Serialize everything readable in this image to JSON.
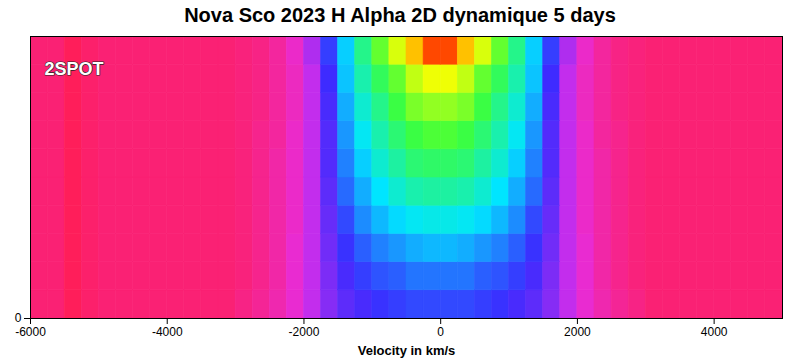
{
  "chart_data": {
    "type": "heatmap",
    "title": "Nova Sco 2023 H Alpha 2D dynamique 5 days",
    "logo": "2SPOT",
    "x_label": "Velocity in km/s",
    "xlim": [
      -6000,
      5000
    ],
    "xticks": [
      -6000,
      -4000,
      -2000,
      0,
      2000,
      4000
    ],
    "ylim": [
      0,
      5
    ],
    "yticks": [
      0
    ],
    "x_bins": [
      -6000,
      -5750,
      -5500,
      -5250,
      -5000,
      -4750,
      -4500,
      -4250,
      -4000,
      -3750,
      -3500,
      -3250,
      -3000,
      -2750,
      -2500,
      -2250,
      -2000,
      -1750,
      -1500,
      -1250,
      -1000,
      -750,
      -500,
      -250,
      0,
      250,
      500,
      750,
      1000,
      1250,
      1500,
      1750,
      2000,
      2250,
      2500,
      2750,
      3000,
      3250,
      3500,
      3750,
      4000,
      4250,
      4500,
      4750,
      5000
    ],
    "y_bins": [
      0,
      0.5,
      1,
      1.5,
      2,
      2.5,
      3,
      3.5,
      4,
      4.5,
      5
    ],
    "color_range": [
      0,
      1
    ],
    "colors": [
      "#ff1e5a",
      "#e52ee8",
      "#3b2bff",
      "#00e5ff",
      "#3cff3c",
      "#ffff00",
      "#ff2000"
    ],
    "cells": [
      [
        0.03,
        0.03,
        0,
        0.02,
        0.03,
        0.03,
        0.03,
        0.03,
        0.03,
        0.03,
        0.03,
        0.03,
        0.05,
        0.07,
        0.1,
        0.14,
        0.2,
        0.26,
        0.3,
        0.32,
        0.34,
        0.35,
        0.36,
        0.36,
        0.36,
        0.36,
        0.35,
        0.34,
        0.32,
        0.3,
        0.26,
        0.2,
        0.14,
        0.1,
        0.07,
        0.05,
        0.03,
        0.03,
        0.03,
        0.03,
        0.03,
        0.03,
        0.03,
        0.03
      ],
      [
        0.03,
        0.03,
        0,
        0.02,
        0.03,
        0.03,
        0.03,
        0.03,
        0.03,
        0.03,
        0.03,
        0.03,
        0.04,
        0.06,
        0.09,
        0.14,
        0.2,
        0.27,
        0.32,
        0.35,
        0.37,
        0.38,
        0.4,
        0.4,
        0.4,
        0.4,
        0.38,
        0.37,
        0.35,
        0.32,
        0.27,
        0.2,
        0.14,
        0.09,
        0.06,
        0.04,
        0.03,
        0.03,
        0.03,
        0.03,
        0.03,
        0.03,
        0.03,
        0.03
      ],
      [
        0.03,
        0.03,
        0,
        0.02,
        0.03,
        0.03,
        0.03,
        0.03,
        0.03,
        0.03,
        0.03,
        0.03,
        0.04,
        0.06,
        0.09,
        0.14,
        0.2,
        0.28,
        0.34,
        0.38,
        0.41,
        0.43,
        0.45,
        0.46,
        0.46,
        0.45,
        0.43,
        0.41,
        0.38,
        0.34,
        0.28,
        0.2,
        0.14,
        0.09,
        0.06,
        0.04,
        0.03,
        0.03,
        0.03,
        0.03,
        0.03,
        0.03,
        0.03,
        0.03
      ],
      [
        0.03,
        0.03,
        0,
        0.02,
        0.03,
        0.03,
        0.03,
        0.03,
        0.03,
        0.03,
        0.03,
        0.03,
        0.04,
        0.06,
        0.09,
        0.13,
        0.2,
        0.29,
        0.36,
        0.42,
        0.46,
        0.49,
        0.51,
        0.52,
        0.52,
        0.51,
        0.49,
        0.46,
        0.42,
        0.36,
        0.29,
        0.2,
        0.13,
        0.09,
        0.06,
        0.04,
        0.03,
        0.03,
        0.03,
        0.03,
        0.03,
        0.03,
        0.03,
        0.03
      ],
      [
        0.03,
        0.03,
        0,
        0.02,
        0.03,
        0.03,
        0.03,
        0.03,
        0.03,
        0.03,
        0.03,
        0.03,
        0.04,
        0.06,
        0.09,
        0.13,
        0.2,
        0.3,
        0.39,
        0.45,
        0.5,
        0.54,
        0.57,
        0.58,
        0.58,
        0.57,
        0.54,
        0.5,
        0.45,
        0.39,
        0.3,
        0.2,
        0.13,
        0.09,
        0.06,
        0.04,
        0.03,
        0.03,
        0.03,
        0.03,
        0.03,
        0.03,
        0.03,
        0.03
      ],
      [
        0.03,
        0.03,
        0,
        0.02,
        0.03,
        0.03,
        0.03,
        0.03,
        0.03,
        0.03,
        0.03,
        0.03,
        0.04,
        0.06,
        0.09,
        0.13,
        0.2,
        0.31,
        0.41,
        0.48,
        0.54,
        0.58,
        0.62,
        0.63,
        0.63,
        0.62,
        0.58,
        0.54,
        0.48,
        0.41,
        0.31,
        0.2,
        0.13,
        0.09,
        0.06,
        0.04,
        0.03,
        0.03,
        0.03,
        0.03,
        0.03,
        0.03,
        0.03,
        0.03
      ],
      [
        0.03,
        0.03,
        0,
        0.02,
        0.03,
        0.03,
        0.03,
        0.03,
        0.03,
        0.03,
        0.03,
        0.03,
        0.04,
        0.06,
        0.08,
        0.13,
        0.2,
        0.31,
        0.43,
        0.51,
        0.57,
        0.62,
        0.66,
        0.68,
        0.68,
        0.66,
        0.62,
        0.57,
        0.51,
        0.43,
        0.31,
        0.2,
        0.13,
        0.08,
        0.06,
        0.04,
        0.03,
        0.03,
        0.03,
        0.03,
        0.03,
        0.03,
        0.03,
        0.03
      ],
      [
        0.03,
        0.03,
        0,
        0.02,
        0.03,
        0.03,
        0.03,
        0.03,
        0.03,
        0.03,
        0.03,
        0.03,
        0.04,
        0.05,
        0.08,
        0.12,
        0.2,
        0.32,
        0.45,
        0.54,
        0.6,
        0.66,
        0.72,
        0.74,
        0.74,
        0.72,
        0.66,
        0.6,
        0.54,
        0.45,
        0.32,
        0.2,
        0.12,
        0.08,
        0.05,
        0.04,
        0.03,
        0.03,
        0.03,
        0.03,
        0.03,
        0.03,
        0.03,
        0.03
      ],
      [
        0.03,
        0.03,
        0,
        0.02,
        0.03,
        0.03,
        0.03,
        0.03,
        0.03,
        0.03,
        0.03,
        0.03,
        0.04,
        0.05,
        0.08,
        0.12,
        0.2,
        0.33,
        0.47,
        0.57,
        0.64,
        0.7,
        0.78,
        0.82,
        0.82,
        0.78,
        0.7,
        0.64,
        0.57,
        0.47,
        0.33,
        0.2,
        0.12,
        0.08,
        0.05,
        0.04,
        0.03,
        0.03,
        0.03,
        0.03,
        0.03,
        0.03,
        0.03,
        0.03
      ],
      [
        0.03,
        0.03,
        0,
        0.02,
        0.03,
        0.03,
        0.03,
        0.03,
        0.03,
        0.03,
        0.03,
        0.03,
        0.04,
        0.05,
        0.08,
        0.13,
        0.22,
        0.35,
        0.48,
        0.6,
        0.7,
        0.8,
        0.88,
        0.97,
        0.97,
        0.88,
        0.8,
        0.7,
        0.6,
        0.48,
        0.35,
        0.22,
        0.13,
        0.08,
        0.05,
        0.04,
        0.03,
        0.03,
        0.03,
        0.03,
        0.03,
        0.03,
        0.03,
        0.03
      ]
    ]
  }
}
